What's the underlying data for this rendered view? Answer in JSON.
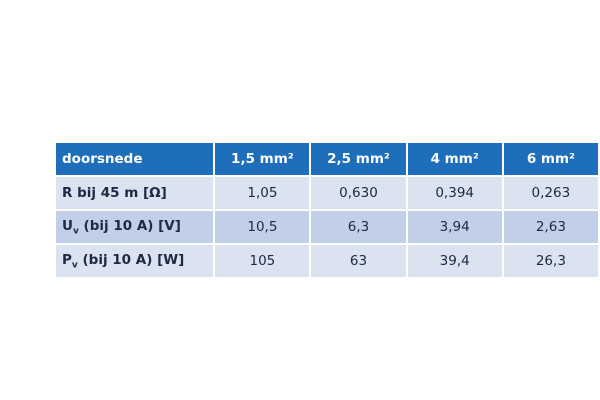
{
  "table": {
    "header": [
      "doorsnede",
      "1,5 mm²",
      "2,5 mm²",
      "4 mm²",
      "6 mm²"
    ],
    "rows": [
      [
        "R bij 45 m [Ω]",
        "1,05",
        "0,630",
        "0,394",
        "0,263"
      ],
      [
        {
          "main": "U",
          "sub": "v",
          "rest": " (bij 10 A) [V]"
        },
        "10,5",
        "6,3",
        "3,94",
        "2,63"
      ],
      [
        {
          "main": "P",
          "sub": "v",
          "rest": " (bij 10 A) [W]"
        },
        "105",
        "63",
        "39,4",
        "26,3"
      ]
    ]
  }
}
